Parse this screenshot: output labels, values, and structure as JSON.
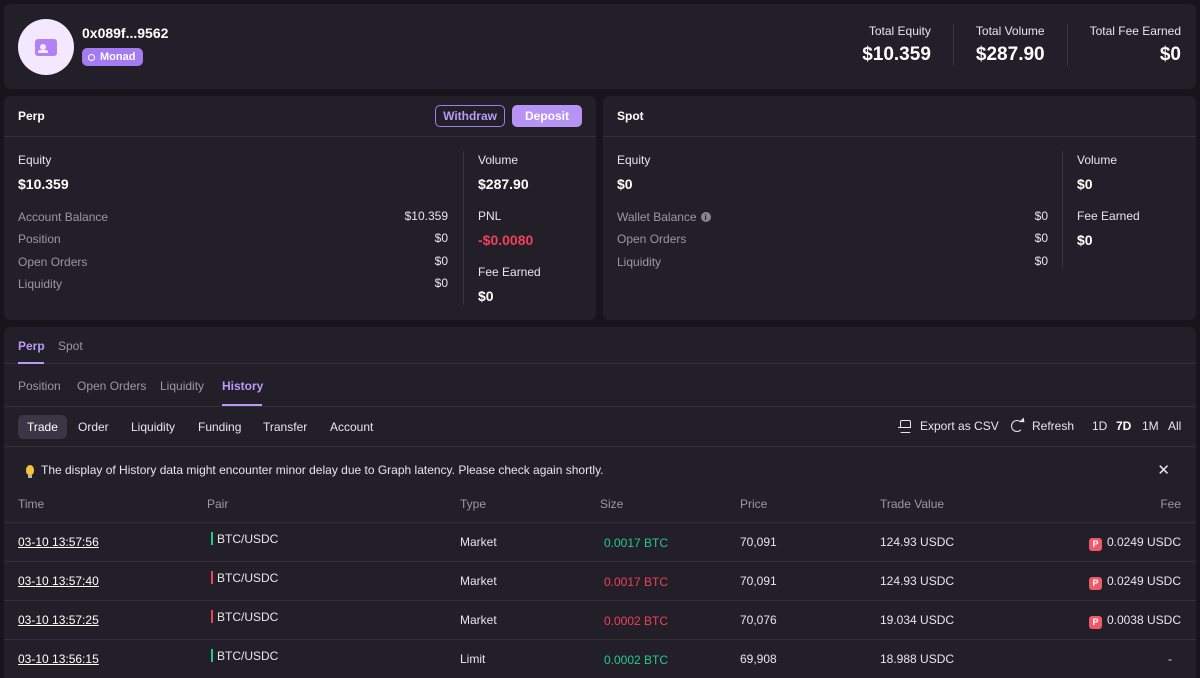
{
  "header": {
    "address": "0x089f...9562",
    "chain": "Monad",
    "totals": [
      {
        "label": "Total Equity",
        "value": "$10.359"
      },
      {
        "label": "Total Volume",
        "value": "$287.90"
      },
      {
        "label": "Total Fee Earned",
        "value": "$0"
      }
    ]
  },
  "perp": {
    "title": "Perp",
    "withdraw_label": "Withdraw",
    "deposit_label": "Deposit",
    "equity_label": "Equity",
    "equity_value": "$10.359",
    "rows": [
      {
        "label": "Account Balance",
        "value": "$10.359"
      },
      {
        "label": "Position",
        "value": "$0"
      },
      {
        "label": "Open Orders",
        "value": "$0"
      },
      {
        "label": "Liquidity",
        "value": "$0"
      }
    ],
    "volume_label": "Volume",
    "volume_value": "$287.90",
    "pnl_label": "PNL",
    "pnl_value": "-$0.0080",
    "fee_label": "Fee Earned",
    "fee_value": "$0"
  },
  "spot": {
    "title": "Spot",
    "equity_label": "Equity",
    "equity_value": "$0",
    "rows": [
      {
        "label": "Wallet Balance",
        "value": "$0"
      },
      {
        "label": "Open Orders",
        "value": "$0"
      },
      {
        "label": "Liquidity",
        "value": "$0"
      }
    ],
    "volume_label": "Volume",
    "volume_value": "$0",
    "fee_label": "Fee Earned",
    "fee_value": "$0"
  },
  "history": {
    "market_tabs": [
      "Perp",
      "Spot"
    ],
    "section_tabs": [
      "Position",
      "Open Orders",
      "Liquidity",
      "History"
    ],
    "type_tabs": [
      "Trade",
      "Order",
      "Liquidity",
      "Funding",
      "Transfer",
      "Account"
    ],
    "export_label": "Export as CSV",
    "refresh_label": "Refresh",
    "ranges": [
      "1D",
      "7D",
      "1M",
      "All"
    ],
    "notice": "The display of History data might encounter minor delay due to Graph latency. Please check again shortly.",
    "columns": [
      "Time",
      "Pair",
      "Type",
      "Size",
      "Price",
      "Trade Value",
      "Fee"
    ],
    "rows": [
      {
        "time": "03-10 13:57:56",
        "pair": "BTC/USDC",
        "type": "Market",
        "size": "0.0017 BTC",
        "price": "70,091",
        "value": "124.93 USDC",
        "fee": "0.0249 USDC"
      },
      {
        "time": "03-10 13:57:40",
        "pair": "BTC/USDC",
        "type": "Market",
        "size": "0.0017 BTC",
        "price": "70,091",
        "value": "124.93 USDC",
        "fee": "0.0249 USDC"
      },
      {
        "time": "03-10 13:57:25",
        "pair": "BTC/USDC",
        "type": "Market",
        "size": "0.0002 BTC",
        "price": "70,076",
        "value": "19.034 USDC",
        "fee": "0.0038 USDC"
      },
      {
        "time": "03-10 13:56:15",
        "pair": "BTC/USDC",
        "type": "Limit",
        "size": "0.0002 BTC",
        "price": "69,908",
        "value": "18.988 USDC",
        "fee": "-"
      }
    ]
  },
  "colors": {
    "accent": "#b693f5",
    "buy": "#22c98f",
    "sell": "#f0405a"
  }
}
